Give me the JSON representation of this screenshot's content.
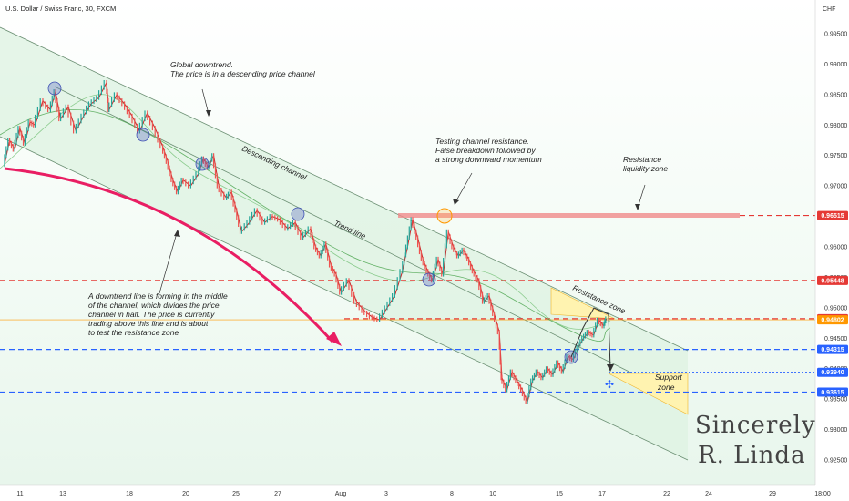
{
  "chart_data": {
    "type": "candlestick",
    "title": "U.S. Dollar / Swiss Franc, 30, FXCM",
    "currency": "CHF",
    "ylim": [
      0.9205,
      1.0005
    ],
    "y_ticks": [
      0.925,
      0.93,
      0.935,
      0.94,
      0.945,
      0.95,
      0.955,
      0.96,
      0.965,
      0.97,
      0.975,
      0.98,
      0.985,
      0.99,
      0.995
    ],
    "x_ticks": [
      "11",
      "13",
      "18",
      "20",
      "25",
      "27",
      "Aug",
      "3",
      "8",
      "10",
      "15",
      "17",
      "22",
      "24",
      "29",
      "18:00"
    ],
    "price_levels": [
      {
        "value": "0.96515",
        "color": "#e53935",
        "style": "dashed"
      },
      {
        "value": "0.95448",
        "color": "#e53935",
        "style": "dashed"
      },
      {
        "value": "0.94820",
        "color": "#e53935",
        "style": "dashed"
      },
      {
        "value": "0.94802",
        "color": "#ff9800",
        "style": "solid"
      },
      {
        "value": "0.94315",
        "color": "#2962ff",
        "style": "dashed"
      },
      {
        "value": "0.93940",
        "color": "#2962ff",
        "style": "dotted"
      },
      {
        "value": "0.93615",
        "color": "#2962ff",
        "style": "dashed"
      }
    ],
    "price_path": [
      [
        0.0,
        0.9735
      ],
      [
        0.2,
        0.9775
      ],
      [
        0.4,
        0.976
      ],
      [
        0.6,
        0.9795
      ],
      [
        0.8,
        0.977
      ],
      [
        1.0,
        0.9805
      ],
      [
        1.2,
        0.98
      ],
      [
        1.5,
        0.984
      ],
      [
        1.8,
        0.9825
      ],
      [
        2.0,
        0.9855
      ],
      [
        2.2,
        0.981
      ],
      [
        2.5,
        0.983
      ],
      [
        2.8,
        0.979
      ],
      [
        3.1,
        0.9815
      ],
      [
        3.4,
        0.9835
      ],
      [
        3.7,
        0.9845
      ],
      [
        4.0,
        0.987
      ],
      [
        4.1,
        0.9825
      ],
      [
        4.4,
        0.985
      ],
      [
        4.7,
        0.9835
      ],
      [
        5.0,
        0.9815
      ],
      [
        5.3,
        0.979
      ],
      [
        5.6,
        0.982
      ],
      [
        5.9,
        0.9795
      ],
      [
        6.2,
        0.9765
      ],
      [
        6.4,
        0.974
      ],
      [
        6.6,
        0.971
      ],
      [
        6.8,
        0.969
      ],
      [
        7.0,
        0.971
      ],
      [
        7.3,
        0.97
      ],
      [
        7.6,
        0.972
      ],
      [
        7.8,
        0.9745
      ],
      [
        8.0,
        0.973
      ],
      [
        8.2,
        0.975
      ],
      [
        8.4,
        0.97
      ],
      [
        8.7,
        0.968
      ],
      [
        8.9,
        0.969
      ],
      [
        9.1,
        0.966
      ],
      [
        9.3,
        0.9625
      ],
      [
        9.6,
        0.964
      ],
      [
        9.9,
        0.966
      ],
      [
        10.2,
        0.964
      ],
      [
        10.5,
        0.965
      ],
      [
        10.8,
        0.9645
      ],
      [
        11.1,
        0.963
      ],
      [
        11.4,
        0.964
      ],
      [
        11.7,
        0.9615
      ],
      [
        12.0,
        0.963
      ],
      [
        12.2,
        0.96
      ],
      [
        12.4,
        0.9585
      ],
      [
        12.6,
        0.9605
      ],
      [
        12.8,
        0.957
      ],
      [
        13.0,
        0.9555
      ],
      [
        13.2,
        0.9525
      ],
      [
        13.5,
        0.9545
      ],
      [
        13.8,
        0.951
      ],
      [
        14.1,
        0.9495
      ],
      [
        14.4,
        0.9485
      ],
      [
        14.7,
        0.948
      ],
      [
        15.0,
        0.95
      ],
      [
        15.3,
        0.952
      ],
      [
        15.6,
        0.956
      ],
      [
        15.8,
        0.96
      ],
      [
        16.0,
        0.9645
      ],
      [
        16.2,
        0.9615
      ],
      [
        16.4,
        0.958
      ],
      [
        16.6,
        0.956
      ],
      [
        16.8,
        0.9545
      ],
      [
        17.0,
        0.958
      ],
      [
        17.2,
        0.9555
      ],
      [
        17.4,
        0.9625
      ],
      [
        17.6,
        0.96
      ],
      [
        17.8,
        0.9585
      ],
      [
        18.0,
        0.9595
      ],
      [
        18.2,
        0.958
      ],
      [
        18.4,
        0.956
      ],
      [
        18.6,
        0.9545
      ],
      [
        18.8,
        0.951
      ],
      [
        19.0,
        0.952
      ],
      [
        19.2,
        0.949
      ],
      [
        19.4,
        0.946
      ],
      [
        19.5,
        0.9385
      ],
      [
        19.7,
        0.9365
      ],
      [
        19.9,
        0.9395
      ],
      [
        20.1,
        0.938
      ],
      [
        20.3,
        0.9365
      ],
      [
        20.5,
        0.9345
      ],
      [
        20.7,
        0.938
      ],
      [
        20.9,
        0.9395
      ],
      [
        21.1,
        0.9385
      ],
      [
        21.3,
        0.94
      ],
      [
        21.5,
        0.939
      ],
      [
        21.7,
        0.941
      ],
      [
        21.9,
        0.9395
      ],
      [
        22.1,
        0.942
      ],
      [
        22.3,
        0.9415
      ],
      [
        22.5,
        0.9435
      ],
      [
        22.7,
        0.945
      ],
      [
        22.9,
        0.946
      ],
      [
        23.1,
        0.9455
      ],
      [
        23.3,
        0.948
      ],
      [
        23.5,
        0.947
      ],
      [
        23.6,
        0.9482
      ]
    ],
    "labels": {
      "descending_channel": "Descending channel",
      "trend_line": "Trend line",
      "resistance_zone": "Resistance zone",
      "support_zone_1": "Support",
      "support_zone_2": "zone",
      "signature_1": "Sincerely",
      "signature_2": "R. Linda"
    },
    "annotations": {
      "global_1": "Global downtrend.",
      "global_2": "The price is in a descending price channel",
      "testing_1": "Testing channel resistance.",
      "testing_2": "False breakdown followed by",
      "testing_3": "a strong downward momentum",
      "liquidity_1": "Resistance",
      "liquidity_2": "liquidity zone",
      "trend_1": "A downtrend line is forming in the middle",
      "trend_2": "of the channel, which divides the price",
      "trend_3": "channel in half. The price is currently",
      "trend_4": "trading above this line and is about",
      "trend_5": "to test the resistance zone"
    },
    "colors": {
      "channel_fill": "#dff2e2",
      "candle_up": "#26a69a",
      "candle_down": "#ef5350",
      "resistance": "#e53935",
      "support": "#2962ff",
      "arrow": "#e91e63",
      "touch_circle": "#3f51b5",
      "zone_fill": "#fff3b0"
    }
  }
}
